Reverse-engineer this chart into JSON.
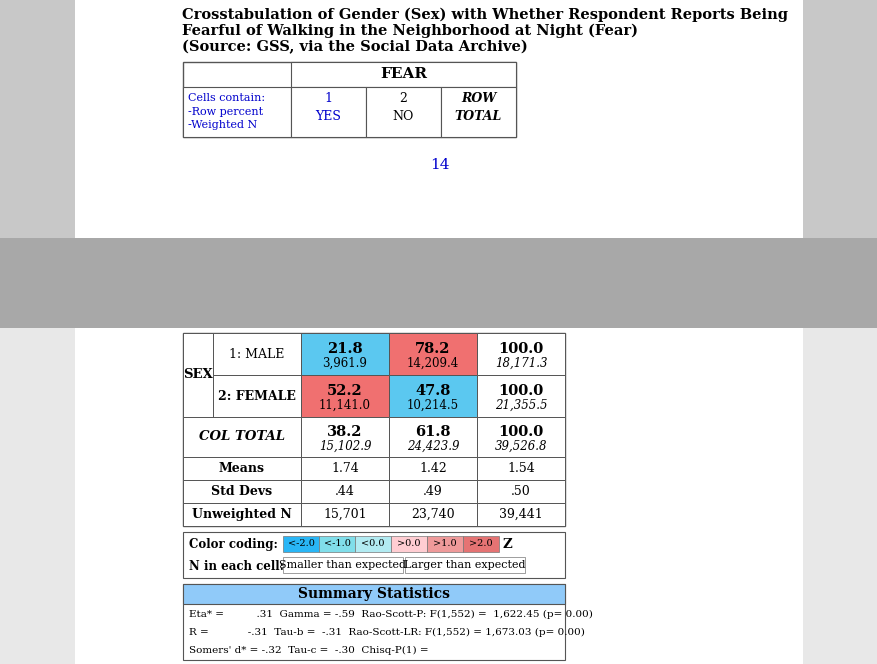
{
  "title_line1": "Crosstabulation of Gender (Sex) with Whether Respondent Reports Being",
  "title_line2": "Fearful of Walking in the Neighborhood at Night (Fear)",
  "title_line3": "(Source: GSS, via the Social Data Archive)",
  "page_number": "14",
  "fear_label": "FEAR",
  "cells_contain_line1": "Cells contain:",
  "cells_contain_line2": "-Row percent",
  "cells_contain_line3": "-Weighted N",
  "sex_label": "SEX",
  "row1_label": "1: MALE",
  "row2_label": "2: FEMALE",
  "row3_label": "COL TOTAL",
  "row4_label": "Means",
  "row5_label": "Std Devs",
  "row6_label": "Unweighted N",
  "male_yes_pct": "21.8",
  "male_yes_n": "3,961.9",
  "male_no_pct": "78.2",
  "male_no_n": "14,209.4",
  "male_total_pct": "100.0",
  "male_total_n": "18,171.3",
  "female_yes_pct": "52.2",
  "female_yes_n": "11,141.0",
  "female_no_pct": "47.8",
  "female_no_n": "10,214.5",
  "female_total_pct": "100.0",
  "female_total_n": "21,355.5",
  "coltotal_yes_pct": "38.2",
  "coltotal_yes_n": "15,102.9",
  "coltotal_no_pct": "61.8",
  "coltotal_no_n": "24,423.9",
  "coltotal_total_pct": "100.0",
  "coltotal_total_n": "39,526.8",
  "means_yes": "1.74",
  "means_no": "1.42",
  "means_total": "1.54",
  "stddevs_yes": ".44",
  "stddevs_no": ".49",
  "stddevs_total": ".50",
  "unweighted_yes": "15,701",
  "unweighted_no": "23,740",
  "unweighted_total": "39,441",
  "color_male_yes": "#5BC8F0",
  "color_male_no": "#F07070",
  "color_female_yes": "#F07070",
  "color_female_no": "#5BC8F0",
  "color_lt_2": "#29B6F6",
  "color_lt_1": "#80DEEA",
  "color_lt_0": "#B2EBF2",
  "color_gt_0": "#FFCDD2",
  "color_gt_1": "#EF9A9A",
  "color_gt_2": "#E57373",
  "summary_header_bg": "#90CAF9",
  "summary_line1": "Eta* =          .31  Gamma = -.59  Rao-Scott-P: F(1,552) =  1,622.45 (p= 0.00)",
  "summary_line2": "R =            -.31  Tau-b =  -.31  Rao-Scott-LR: F(1,552) = 1,673.03 (p= 0.00)",
  "summary_line3": "Somers' d* = -.32  Tau-c =  -.30  Chisq-P(1) =",
  "color_coding_label": "Color coding:",
  "n_in_each_cell": "N in each cell:",
  "smaller_than": "Smaller than expected",
  "larger_than": "Larger than expected",
  "top_bg": "#ffffff",
  "gray_bg": "#a0a0a0",
  "bottom_bg": "#f0f0f0"
}
